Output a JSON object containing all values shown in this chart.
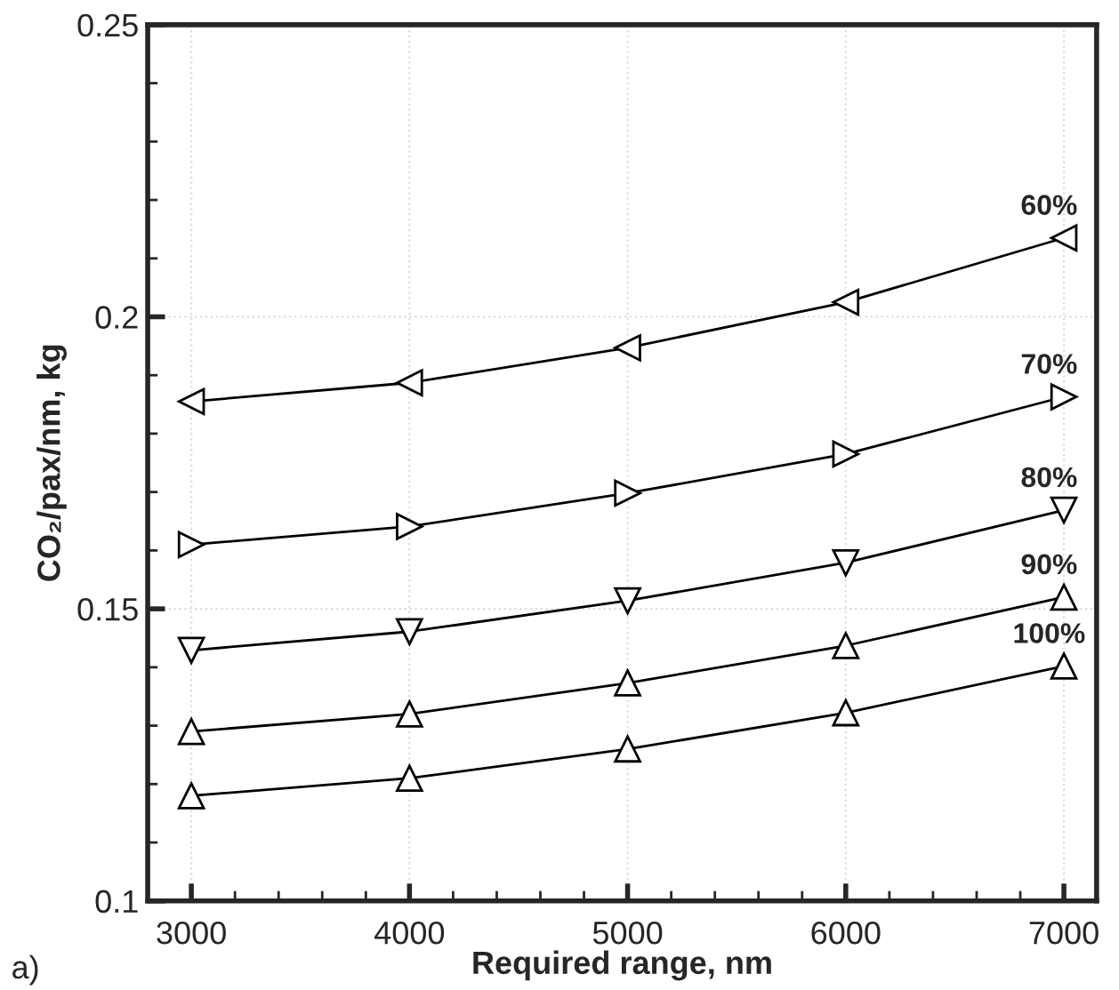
{
  "chart_data": {
    "type": "line",
    "xlabel": "Required range, nm",
    "ylabel": "CO₂/pax/nm, kg",
    "x": [
      3000,
      4000,
      5000,
      6000,
      7000
    ],
    "series": [
      {
        "name": "60%",
        "color": "#000000",
        "marker": "triangle-left",
        "values": [
          0.1855,
          0.1887,
          0.1947,
          0.2025,
          0.2135
        ]
      },
      {
        "name": "70%",
        "color": "#000000",
        "marker": "triangle-right",
        "values": [
          0.161,
          0.1641,
          0.1698,
          0.1765,
          0.1863
        ]
      },
      {
        "name": "80%",
        "color": "#000000",
        "marker": "triangle-down",
        "values": [
          0.1429,
          0.1461,
          0.1514,
          0.1579,
          0.1669
        ]
      },
      {
        "name": "90%",
        "color": "#000000",
        "marker": "triangle",
        "values": [
          0.129,
          0.132,
          0.1373,
          0.1437,
          0.152
        ]
      },
      {
        "name": "100%",
        "color": "#000000",
        "marker": "triangle",
        "values": [
          0.118,
          0.121,
          0.126,
          0.1322,
          0.1402
        ]
      }
    ],
    "annotations": [
      "a)"
    ],
    "xlim": [
      2800,
      7150
    ],
    "ylim": [
      0.1,
      0.25
    ],
    "xticks": [
      3000,
      4000,
      5000,
      6000,
      7000
    ],
    "yticks": [
      0.1,
      0.15,
      0.2,
      0.25
    ],
    "grid": true,
    "line_style": "solid",
    "legend": false
  }
}
